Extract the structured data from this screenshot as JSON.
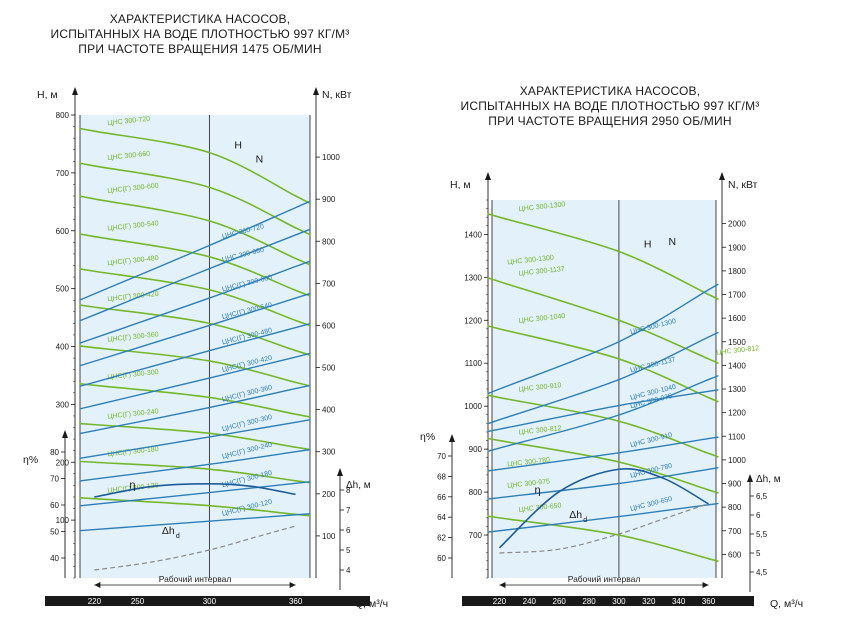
{
  "chart_data": [
    {
      "type": "line",
      "title": [
        "ХАРАКТЕРИСТИКА НАСОСОВ,",
        "ИСПЫТАННЫХ НА ВОДЕ ПЛОТНОСТЬЮ 997 КГ/М³",
        "ПРИ ЧАСТОТЕ ВРАЩЕНИЯ 1475 ОБ/МИН"
      ],
      "xlabel": "Q, м³/ч",
      "xlim": [
        210,
        370
      ],
      "xticks": [
        220,
        250,
        300,
        360
      ],
      "ylabel_H": "H, м",
      "ylim_H": [
        0,
        800
      ],
      "yticks_H": [
        100,
        200,
        300,
        400,
        500,
        600,
        700,
        800
      ],
      "ylabel_N": "N, кВт",
      "ylim_N": [
        0,
        1100
      ],
      "yticks_N": [
        100,
        200,
        300,
        400,
        500,
        600,
        700,
        800,
        900,
        1000
      ],
      "ylabel_eta": "η%",
      "eta_ticks": [
        40,
        50,
        60,
        70,
        80
      ],
      "ylabel_npsh": "Δh_d, м",
      "npsh_ticks": [
        4,
        5,
        6,
        7,
        8
      ],
      "working_interval": [
        220,
        360
      ],
      "working_interval_label": "Рабочий интервал",
      "reference_line_x": 300,
      "curve_labels": {
        "H": "H",
        "N": "N",
        "eta": "η",
        "npsh": "Δh",
        "npsh_sub": "d"
      },
      "H_series": [
        {
          "name": "ЦНС 300-720",
          "values": [
            [
              220,
              772
            ],
            [
              300,
              735
            ],
            [
              360,
              660
            ]
          ]
        },
        {
          "name": "ЦНС 300-660",
          "values": [
            [
              220,
              712
            ],
            [
              300,
              675
            ],
            [
              360,
              605
            ]
          ]
        },
        {
          "name": "ЦНС(Г) 300-600",
          "values": [
            [
              220,
              655
            ],
            [
              300,
              617
            ],
            [
              360,
              552
            ]
          ]
        },
        {
          "name": "ЦНС(Г) 300-540",
          "values": [
            [
              220,
              590
            ],
            [
              300,
              555
            ],
            [
              360,
              497
            ]
          ]
        },
        {
          "name": "ЦНС(Г) 300-480",
          "values": [
            [
              220,
              530
            ],
            [
              300,
              498
            ],
            [
              360,
              445
            ]
          ]
        },
        {
          "name": "ЦНС(Г) 300-420",
          "values": [
            [
              220,
              468
            ],
            [
              300,
              440
            ],
            [
              360,
              393
            ]
          ]
        },
        {
          "name": "ЦНС(Г) 300-360",
          "values": [
            [
              220,
              398
            ],
            [
              300,
              375
            ],
            [
              360,
              338
            ]
          ]
        },
        {
          "name": "ЦНС(Г) 300-300",
          "values": [
            [
              220,
              333
            ],
            [
              300,
              312
            ],
            [
              360,
              283
            ]
          ]
        },
        {
          "name": "ЦНС(Г) 300-240",
          "values": [
            [
              220,
              265
            ],
            [
              300,
              250
            ],
            [
              360,
              226
            ]
          ]
        },
        {
          "name": "ЦНС(Г) 300-180",
          "values": [
            [
              220,
              200
            ],
            [
              300,
              188
            ],
            [
              360,
              168
            ]
          ]
        },
        {
          "name": "ЦНС(Г) 300-120",
          "values": [
            [
              220,
              137
            ],
            [
              300,
              125
            ],
            [
              360,
              110
            ]
          ]
        }
      ],
      "N_series": [
        {
          "name": "ЦНС 300-720",
          "values": [
            [
              220,
              675
            ],
            [
              300,
              790
            ],
            [
              360,
              880
            ]
          ]
        },
        {
          "name": "ЦНС 300-660",
          "values": [
            [
              220,
              625
            ],
            [
              300,
              735
            ],
            [
              360,
              815
            ]
          ]
        },
        {
          "name": "ЦНС(Г) 300-600",
          "values": [
            [
              220,
              570
            ],
            [
              300,
              665
            ],
            [
              360,
              740
            ]
          ]
        },
        {
          "name": "ЦНС(Г) 300-540",
          "values": [
            [
              220,
              515
            ],
            [
              300,
              600
            ],
            [
              360,
              665
            ]
          ]
        },
        {
          "name": "ЦНС(Г) 300-480",
          "values": [
            [
              220,
              465
            ],
            [
              300,
              540
            ],
            [
              360,
              595
            ]
          ]
        },
        {
          "name": "ЦНС(Г) 300-420",
          "values": [
            [
              220,
              410
            ],
            [
              300,
              475
            ],
            [
              360,
              525
            ]
          ]
        },
        {
          "name": "ЦНС(Г) 300-360",
          "values": [
            [
              220,
              350
            ],
            [
              300,
              405
            ],
            [
              360,
              450
            ]
          ]
        },
        {
          "name": "ЦНС(Г) 300-300",
          "values": [
            [
              220,
              290
            ],
            [
              300,
              335
            ],
            [
              360,
              370
            ]
          ]
        },
        {
          "name": "ЦНС(Г) 300-240",
          "values": [
            [
              220,
              235
            ],
            [
              300,
              270
            ],
            [
              360,
              300
            ]
          ]
        },
        {
          "name": "ЦНС(Г) 300-180",
          "values": [
            [
              220,
              175
            ],
            [
              300,
              203
            ],
            [
              360,
              225
            ]
          ]
        },
        {
          "name": "ЦНС(Г) 300-120",
          "values": [
            [
              220,
              115
            ],
            [
              300,
              135
            ],
            [
              360,
              150
            ]
          ]
        }
      ],
      "eta": [
        [
          220,
          63
        ],
        [
          260,
          67
        ],
        [
          300,
          68
        ],
        [
          330,
          67
        ],
        [
          360,
          64
        ]
      ],
      "npsh": [
        [
          220,
          4.0
        ],
        [
          260,
          4.4
        ],
        [
          300,
          5.0
        ],
        [
          330,
          5.6
        ],
        [
          360,
          6.2
        ]
      ]
    },
    {
      "type": "line",
      "title": [
        "ХАРАКТЕРИСТИКА НАСОСОВ,",
        "ИСПЫТАННЫХ НА ВОДЕ ПЛОТНОСТЬЮ 997 КГ/М³",
        "ПРИ ЧАСТОТЕ ВРАЩЕНИЯ 2950 ОБ/МИН"
      ],
      "xlabel": "Q, м³/ч",
      "xlim": [
        215,
        365
      ],
      "xticks": [
        220,
        240,
        260,
        280,
        300,
        320,
        340,
        360
      ],
      "ylabel_H": "H, м",
      "ylim_H": [
        600,
        1480
      ],
      "yticks_H": [
        700,
        800,
        900,
        1000,
        1100,
        1200,
        1300,
        1400
      ],
      "ylabel_N": "N, кВт",
      "ylim_N": [
        500,
        2100
      ],
      "yticks_N": [
        600,
        700,
        800,
        900,
        1000,
        1100,
        1200,
        1300,
        1400,
        1500,
        1600,
        1700,
        1800,
        1900,
        2000
      ],
      "ylabel_eta": "η%",
      "eta_ticks": [
        60,
        62,
        64,
        66,
        68,
        70
      ],
      "ylabel_npsh": "Δh_d, м",
      "npsh_ticks": [
        4.5,
        5,
        5.5,
        6,
        6.5
      ],
      "working_interval": [
        220,
        360
      ],
      "working_interval_label": "Рабочий интервал",
      "reference_line_x": 300,
      "curve_labels": {
        "H": "H",
        "N": "N",
        "eta": "η",
        "npsh": "Δh",
        "npsh_sub": "d"
      },
      "H_series": [
        {
          "name": "ЦНС 300-1300",
          "values": [
            [
              220,
              1440
            ],
            [
              300,
              1360
            ],
            [
              360,
              1260
            ]
          ]
        },
        {
          "name": "ЦНС 300-1137",
          "values": [
            [
              220,
              1290
            ],
            [
              300,
              1200
            ],
            [
              360,
              1110
            ]
          ]
        },
        {
          "name": "ЦНС 300-1040",
          "values": [
            [
              220,
              1180
            ],
            [
              300,
              1110
            ],
            [
              360,
              1020
            ]
          ]
        },
        {
          "name": "ЦНС 300-910",
          "values": [
            [
              220,
              1020
            ],
            [
              300,
              965
            ],
            [
              360,
              890
            ]
          ]
        },
        {
          "name": "ЦНС 300-812",
          "values": [
            [
              220,
              920
            ],
            [
              300,
              870
            ],
            [
              360,
              805
            ]
          ]
        },
        {
          "name": "ЦНС 300-650",
          "values": [
            [
              220,
              740
            ],
            [
              300,
              700
            ],
            [
              360,
              645
            ]
          ]
        }
      ],
      "N_series": [
        {
          "name": "ЦНС 300-1300",
          "values": [
            [
              220,
              1300
            ],
            [
              300,
              1500
            ],
            [
              360,
              1720
            ]
          ]
        },
        {
          "name": "ЦНС 300-1137",
          "values": [
            [
              220,
              1170
            ],
            [
              300,
              1340
            ],
            [
              360,
              1520
            ]
          ]
        },
        {
          "name": "ЦНС 300-975",
          "values": [
            [
              220,
              1050
            ],
            [
              300,
              1190
            ],
            [
              360,
              1340
            ]
          ]
        },
        {
          "name": "ЦНС 300-1040",
          "values": [
            [
              220,
              1130
            ],
            [
              300,
              1230
            ],
            [
              360,
              1290
            ]
          ]
        },
        {
          "name": "ЦНС 300-910",
          "values": [
            [
              220,
              960
            ],
            [
              300,
              1030
            ],
            [
              360,
              1090
            ]
          ]
        },
        {
          "name": "ЦНС 300-780",
          "values": [
            [
              220,
              840
            ],
            [
              300,
              900
            ],
            [
              360,
              960
            ]
          ]
        },
        {
          "name": "ЦНС 300-650",
          "values": [
            [
              220,
              700
            ],
            [
              300,
              760
            ],
            [
              360,
              810
            ]
          ]
        }
      ],
      "H_labels_only": [
        {
          "name": "ЦНС 300-1300",
          "values": [
            [
              220,
              1330
            ]
          ]
        },
        {
          "name": "ЦНС 300-780",
          "values": [
            [
              220,
              860
            ]
          ]
        },
        {
          "name": "ЦНС 300-975",
          "values": [
            [
              220,
              810
            ]
          ]
        },
        {
          "name": "ЦНС 300-812",
          "values": [
            [
              360,
              1120
            ]
          ]
        }
      ],
      "eta": [
        [
          220,
          61
        ],
        [
          260,
          66.5
        ],
        [
          300,
          68.7
        ],
        [
          330,
          67.8
        ],
        [
          360,
          65.3
        ]
      ],
      "npsh": [
        [
          220,
          5.0
        ],
        [
          260,
          5.1
        ],
        [
          300,
          5.5
        ],
        [
          330,
          5.9
        ],
        [
          360,
          6.3
        ]
      ]
    }
  ],
  "colors": {
    "H": "#74b72c",
    "N": "#2e7fb8",
    "eta": "#1d5c9a",
    "npsh": "#8a8a8a",
    "panel": "#e3f1fa",
    "axis": "#1a1a1a",
    "bar": "#1a1a1a",
    "bar_text": "#ffffff"
  }
}
